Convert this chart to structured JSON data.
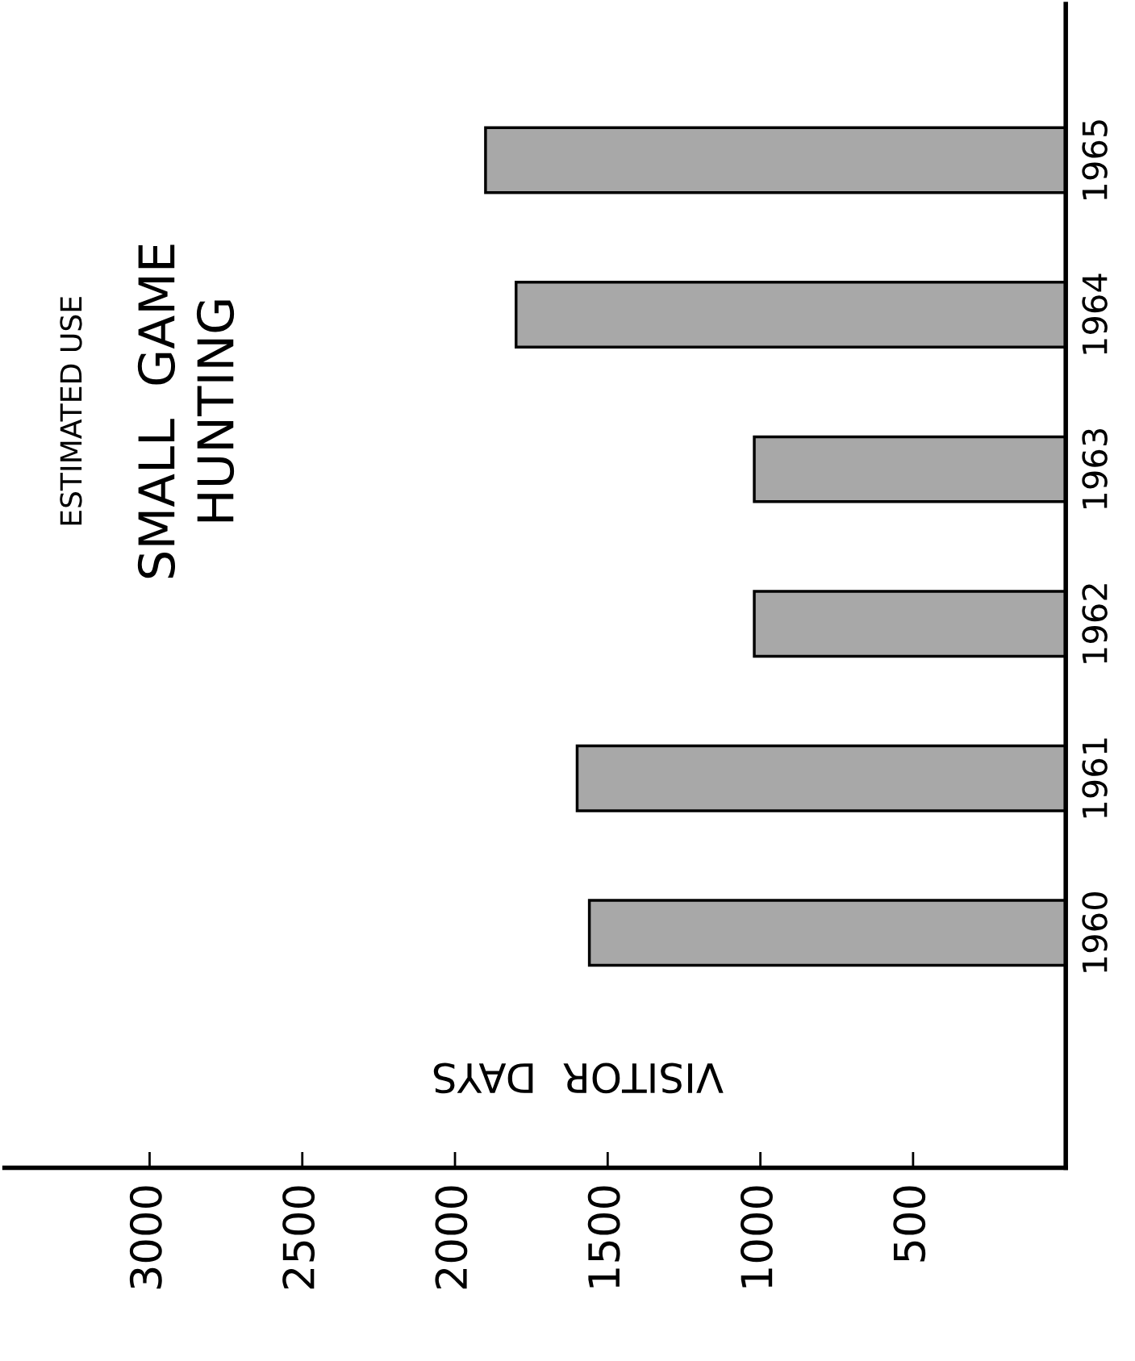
{
  "chart_data": {
    "type": "bar",
    "orientation": "horizontal",
    "title": "SMALL  GAME\nHUNTING",
    "subtitle": "ESTIMATED USE",
    "xlabel": "VISITOR  DAYS",
    "categories": [
      "1965",
      "1964",
      "1963",
      "1962",
      "1961",
      "1960"
    ],
    "values": [
      1900,
      1800,
      1020,
      1020,
      1600,
      1560
    ],
    "color": "#a8a8a8",
    "xlim": [
      3475,
      0
    ],
    "xticks": [
      500,
      1000,
      1500,
      2000,
      2500,
      3000
    ],
    "grid": false
  }
}
